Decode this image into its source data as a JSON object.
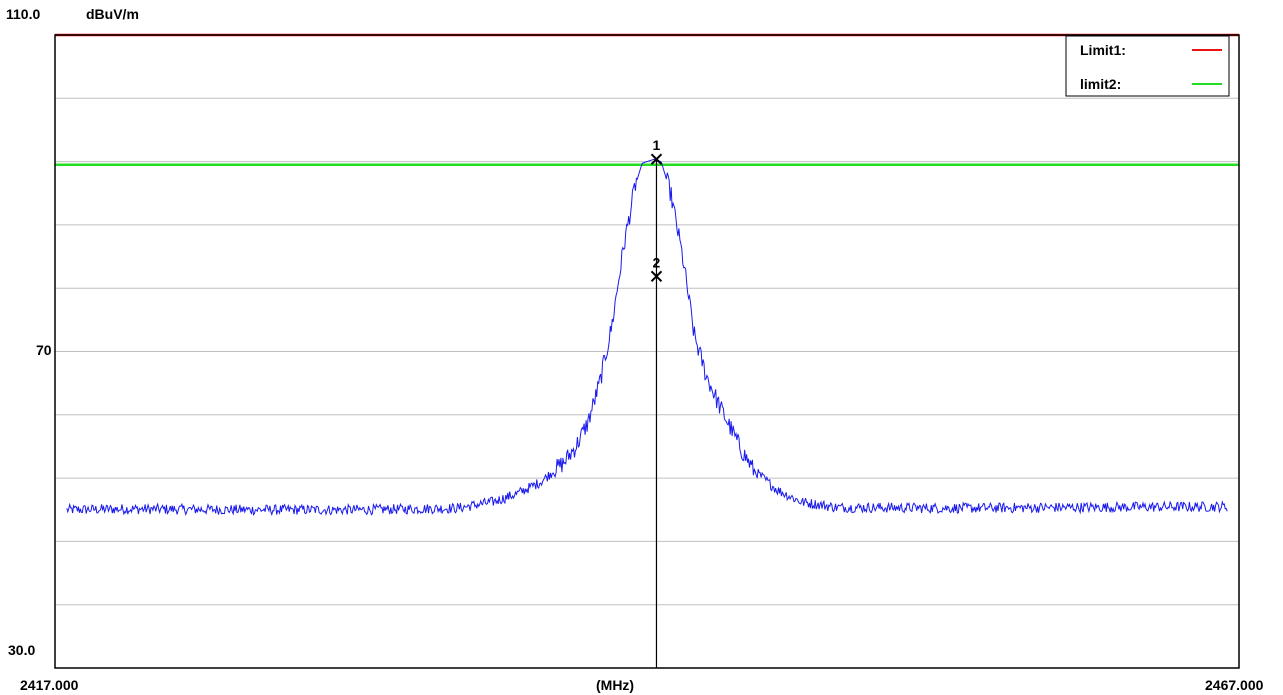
{
  "chart_data": {
    "type": "line",
    "y_top_label": "110.0",
    "y_unit": "dBuV/m",
    "y_mid_label": "70",
    "y_bottom_label": "30.0",
    "x_start_label": "2417.000",
    "x_end_label": "2467.000",
    "x_unit": "(MHz)",
    "xlim": [
      2417.0,
      2467.0
    ],
    "ylim": [
      30.0,
      110.0
    ],
    "y_gridlines": [
      38,
      46,
      54,
      62,
      70,
      78,
      86,
      94,
      102
    ],
    "grid": true,
    "legend_position": "top-right",
    "limits": [
      {
        "name": "Limit1:",
        "value": 110.0,
        "color": "#ee1111"
      },
      {
        "name": "limit2:",
        "value": 93.6,
        "color": "#22dd22"
      }
    ],
    "series": [
      {
        "color": "#1a1aee",
        "x": [
          2417.5,
          2420,
          2425,
          2430,
          2434,
          2435.5,
          2436.5,
          2437.5,
          2438.5,
          2439.0,
          2439.5,
          2440.0,
          2440.5,
          2441.0,
          2441.5,
          2441.8,
          2442.0,
          2442.3,
          2442.6,
          2443.0,
          2443.5,
          2444.0,
          2444.5,
          2445.0,
          2445.5,
          2446.0,
          2446.5,
          2447.5,
          2448.5,
          2450,
          2455,
          2460,
          2466.5
        ],
        "y": [
          50.0,
          50.1,
          50.0,
          50.0,
          50.2,
          51.0,
          52.0,
          53.5,
          56.0,
          58.0,
          61.0,
          66.0,
          73.0,
          83.0,
          91.0,
          93.8,
          94.0,
          94.3,
          94.0,
          90.0,
          82.0,
          72.0,
          67.0,
          63.5,
          60.5,
          57.5,
          55.0,
          52.5,
          51.0,
          50.3,
          50.2,
          50.3,
          50.4
        ]
      }
    ],
    "markers": [
      {
        "label": "1",
        "x": 2442.4,
        "y": 94.3
      },
      {
        "label": "2",
        "x": 2442.4,
        "y": 79.5
      }
    ],
    "cursor_x": 2442.4
  }
}
